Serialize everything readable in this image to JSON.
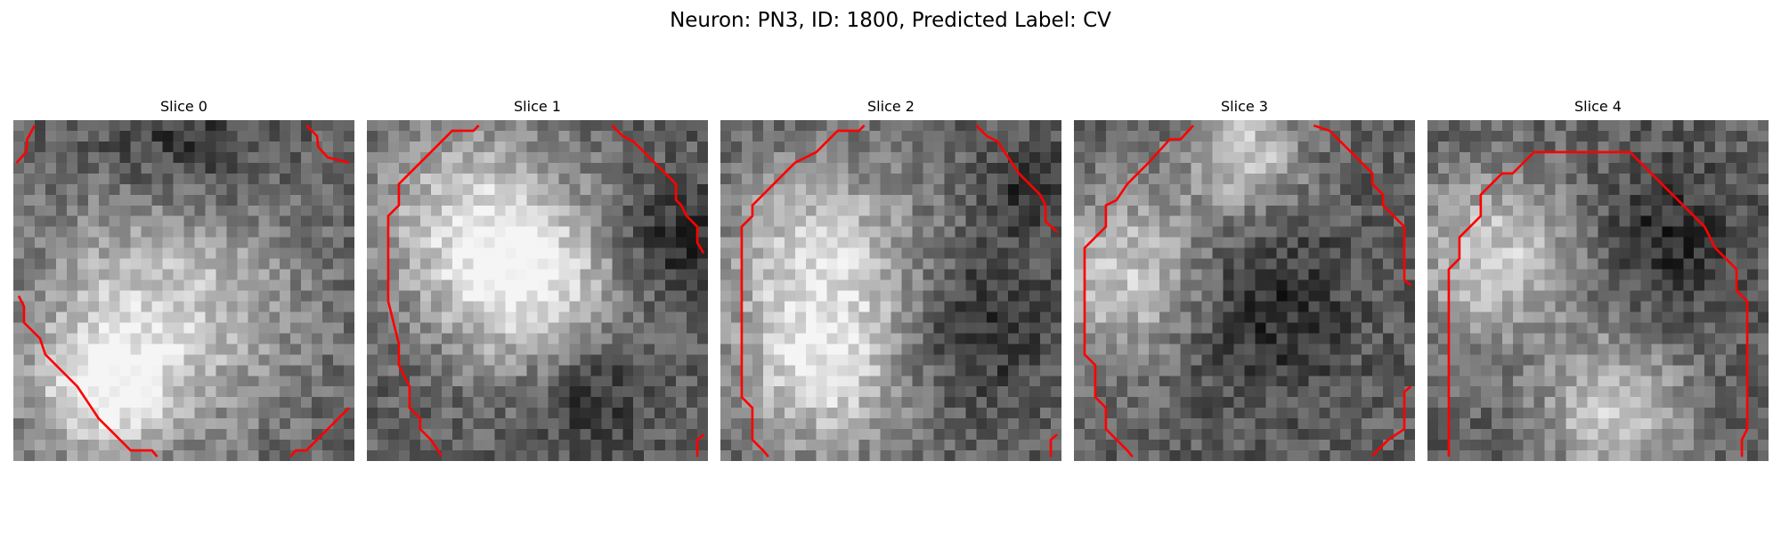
{
  "figure": {
    "title": "Neuron: PN3, ID: 1800, Predicted Label: CV",
    "contour_color": "#ff0000",
    "colormap": "gray",
    "grid_size": 32
  },
  "slices": [
    {
      "title": "Slice 0",
      "brightness_peaks": [
        [
          0.45,
          0.55,
          0.45
        ],
        [
          0.25,
          0.8,
          0.25
        ]
      ],
      "darkness": [
        [
          0.5,
          0.05,
          0.3
        ]
      ]
    },
    {
      "title": "Slice 1",
      "brightness_peaks": [
        [
          0.3,
          0.3,
          0.35
        ],
        [
          0.5,
          0.5,
          0.3
        ]
      ],
      "darkness": [
        [
          0.65,
          0.8,
          0.2
        ],
        [
          0.9,
          0.35,
          0.2
        ]
      ]
    },
    {
      "title": "Slice 2",
      "brightness_peaks": [
        [
          0.3,
          0.4,
          0.35
        ],
        [
          0.3,
          0.75,
          0.3
        ]
      ],
      "darkness": [
        [
          0.75,
          0.6,
          0.25
        ],
        [
          0.9,
          0.2,
          0.15
        ]
      ]
    },
    {
      "title": "Slice 3",
      "brightness_peaks": [
        [
          0.15,
          0.45,
          0.3
        ],
        [
          0.5,
          0.1,
          0.2
        ]
      ],
      "darkness": [
        [
          0.55,
          0.55,
          0.3
        ]
      ]
    },
    {
      "title": "Slice 4",
      "brightness_peaks": [
        [
          0.2,
          0.4,
          0.3
        ],
        [
          0.55,
          0.85,
          0.25
        ]
      ],
      "darkness": [
        [
          0.7,
          0.35,
          0.25
        ]
      ]
    }
  ]
}
